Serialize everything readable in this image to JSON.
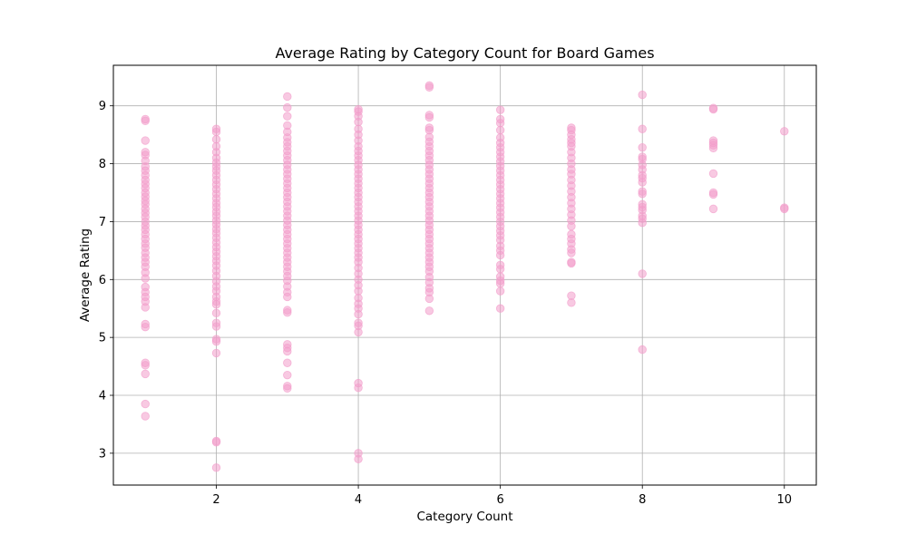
{
  "chart_data": {
    "type": "scatter",
    "title": "Average Rating by Category Count for Board Games",
    "xlabel": "Category Count",
    "ylabel": "Average Rating",
    "xlim": [
      0.55,
      10.45
    ],
    "ylim": [
      2.45,
      9.7
    ],
    "x_ticks": [
      2,
      4,
      6,
      8,
      10
    ],
    "y_ticks": [
      3,
      4,
      5,
      6,
      7,
      8,
      9
    ],
    "grid": true,
    "marker_color": "#f29ccb",
    "marker_opacity": 0.55,
    "series": [
      {
        "points": [
          [
            1,
            8.77
          ],
          [
            1,
            8.74
          ],
          [
            1,
            8.4
          ],
          [
            1,
            8.2
          ],
          [
            1,
            8.15
          ],
          [
            1,
            8.05
          ],
          [
            1,
            7.95
          ],
          [
            1,
            7.88
          ],
          [
            1,
            7.8
          ],
          [
            1,
            7.72
          ],
          [
            1,
            7.65
          ],
          [
            1,
            7.58
          ],
          [
            1,
            7.5
          ],
          [
            1,
            7.43
          ],
          [
            1,
            7.36
          ],
          [
            1,
            7.3
          ],
          [
            1,
            7.22
          ],
          [
            1,
            7.15
          ],
          [
            1,
            7.08
          ],
          [
            1,
            7.0
          ],
          [
            1,
            6.93
          ],
          [
            1,
            6.86
          ],
          [
            1,
            6.78
          ],
          [
            1,
            6.7
          ],
          [
            1,
            6.62
          ],
          [
            1,
            6.55
          ],
          [
            1,
            6.46
          ],
          [
            1,
            6.38
          ],
          [
            1,
            6.3
          ],
          [
            1,
            6.22
          ],
          [
            1,
            6.12
          ],
          [
            1,
            6.02
          ],
          [
            1,
            5.87
          ],
          [
            1,
            5.78
          ],
          [
            1,
            5.7
          ],
          [
            1,
            5.62
          ],
          [
            1,
            5.52
          ],
          [
            1,
            5.23
          ],
          [
            1,
            5.18
          ],
          [
            1,
            4.56
          ],
          [
            1,
            4.52
          ],
          [
            1,
            4.37
          ],
          [
            1,
            3.85
          ],
          [
            1,
            3.64
          ],
          [
            2,
            8.6
          ],
          [
            2,
            8.55
          ],
          [
            2,
            8.42
          ],
          [
            2,
            8.3
          ],
          [
            2,
            8.2
          ],
          [
            2,
            8.1
          ],
          [
            2,
            8.02
          ],
          [
            2,
            7.95
          ],
          [
            2,
            7.88
          ],
          [
            2,
            7.8
          ],
          [
            2,
            7.72
          ],
          [
            2,
            7.64
          ],
          [
            2,
            7.56
          ],
          [
            2,
            7.48
          ],
          [
            2,
            7.4
          ],
          [
            2,
            7.32
          ],
          [
            2,
            7.25
          ],
          [
            2,
            7.17
          ],
          [
            2,
            7.1
          ],
          [
            2,
            7.02
          ],
          [
            2,
            6.95
          ],
          [
            2,
            6.87
          ],
          [
            2,
            6.8
          ],
          [
            2,
            6.72
          ],
          [
            2,
            6.64
          ],
          [
            2,
            6.56
          ],
          [
            2,
            6.48
          ],
          [
            2,
            6.4
          ],
          [
            2,
            6.32
          ],
          [
            2,
            6.24
          ],
          [
            2,
            6.15
          ],
          [
            2,
            6.06
          ],
          [
            2,
            5.97
          ],
          [
            2,
            5.88
          ],
          [
            2,
            5.8
          ],
          [
            2,
            5.7
          ],
          [
            2,
            5.62
          ],
          [
            2,
            5.57
          ],
          [
            2,
            5.42
          ],
          [
            2,
            5.25
          ],
          [
            2,
            5.19
          ],
          [
            2,
            4.97
          ],
          [
            2,
            4.93
          ],
          [
            2,
            4.73
          ],
          [
            2,
            3.21
          ],
          [
            2,
            3.19
          ],
          [
            2,
            2.75
          ],
          [
            3,
            9.16
          ],
          [
            3,
            8.97
          ],
          [
            3,
            8.82
          ],
          [
            3,
            8.66
          ],
          [
            3,
            8.55
          ],
          [
            3,
            8.45
          ],
          [
            3,
            8.37
          ],
          [
            3,
            8.3
          ],
          [
            3,
            8.22
          ],
          [
            3,
            8.14
          ],
          [
            3,
            8.06
          ],
          [
            3,
            7.98
          ],
          [
            3,
            7.9
          ],
          [
            3,
            7.82
          ],
          [
            3,
            7.74
          ],
          [
            3,
            7.66
          ],
          [
            3,
            7.58
          ],
          [
            3,
            7.5
          ],
          [
            3,
            7.42
          ],
          [
            3,
            7.34
          ],
          [
            3,
            7.26
          ],
          [
            3,
            7.18
          ],
          [
            3,
            7.1
          ],
          [
            3,
            7.02
          ],
          [
            3,
            6.94
          ],
          [
            3,
            6.86
          ],
          [
            3,
            6.78
          ],
          [
            3,
            6.7
          ],
          [
            3,
            6.62
          ],
          [
            3,
            6.54
          ],
          [
            3,
            6.46
          ],
          [
            3,
            6.38
          ],
          [
            3,
            6.3
          ],
          [
            3,
            6.22
          ],
          [
            3,
            6.14
          ],
          [
            3,
            6.06
          ],
          [
            3,
            5.98
          ],
          [
            3,
            5.88
          ],
          [
            3,
            5.78
          ],
          [
            3,
            5.7
          ],
          [
            3,
            5.47
          ],
          [
            3,
            5.43
          ],
          [
            3,
            4.88
          ],
          [
            3,
            4.82
          ],
          [
            3,
            4.76
          ],
          [
            3,
            4.56
          ],
          [
            3,
            4.35
          ],
          [
            3,
            4.16
          ],
          [
            3,
            4.12
          ],
          [
            4,
            8.94
          ],
          [
            4,
            8.9
          ],
          [
            4,
            8.82
          ],
          [
            4,
            8.72
          ],
          [
            4,
            8.6
          ],
          [
            4,
            8.5
          ],
          [
            4,
            8.4
          ],
          [
            4,
            8.3
          ],
          [
            4,
            8.22
          ],
          [
            4,
            8.14
          ],
          [
            4,
            8.06
          ],
          [
            4,
            7.98
          ],
          [
            4,
            7.9
          ],
          [
            4,
            7.82
          ],
          [
            4,
            7.74
          ],
          [
            4,
            7.66
          ],
          [
            4,
            7.58
          ],
          [
            4,
            7.5
          ],
          [
            4,
            7.42
          ],
          [
            4,
            7.34
          ],
          [
            4,
            7.26
          ],
          [
            4,
            7.18
          ],
          [
            4,
            7.1
          ],
          [
            4,
            7.02
          ],
          [
            4,
            6.94
          ],
          [
            4,
            6.86
          ],
          [
            4,
            6.78
          ],
          [
            4,
            6.7
          ],
          [
            4,
            6.62
          ],
          [
            4,
            6.54
          ],
          [
            4,
            6.46
          ],
          [
            4,
            6.38
          ],
          [
            4,
            6.3
          ],
          [
            4,
            6.2
          ],
          [
            4,
            6.1
          ],
          [
            4,
            6.0
          ],
          [
            4,
            5.9
          ],
          [
            4,
            5.8
          ],
          [
            4,
            5.68
          ],
          [
            4,
            5.58
          ],
          [
            4,
            5.5
          ],
          [
            4,
            5.4
          ],
          [
            4,
            5.25
          ],
          [
            4,
            5.2
          ],
          [
            4,
            5.09
          ],
          [
            4,
            4.21
          ],
          [
            4,
            4.13
          ],
          [
            4,
            3.0
          ],
          [
            4,
            2.9
          ],
          [
            5,
            9.35
          ],
          [
            5,
            9.32
          ],
          [
            5,
            8.84
          ],
          [
            5,
            8.8
          ],
          [
            5,
            8.62
          ],
          [
            5,
            8.58
          ],
          [
            5,
            8.46
          ],
          [
            5,
            8.38
          ],
          [
            5,
            8.3
          ],
          [
            5,
            8.22
          ],
          [
            5,
            8.14
          ],
          [
            5,
            8.06
          ],
          [
            5,
            7.98
          ],
          [
            5,
            7.9
          ],
          [
            5,
            7.82
          ],
          [
            5,
            7.74
          ],
          [
            5,
            7.66
          ],
          [
            5,
            7.58
          ],
          [
            5,
            7.5
          ],
          [
            5,
            7.42
          ],
          [
            5,
            7.34
          ],
          [
            5,
            7.26
          ],
          [
            5,
            7.18
          ],
          [
            5,
            7.1
          ],
          [
            5,
            7.02
          ],
          [
            5,
            6.94
          ],
          [
            5,
            6.86
          ],
          [
            5,
            6.78
          ],
          [
            5,
            6.7
          ],
          [
            5,
            6.62
          ],
          [
            5,
            6.54
          ],
          [
            5,
            6.46
          ],
          [
            5,
            6.38
          ],
          [
            5,
            6.3
          ],
          [
            5,
            6.22
          ],
          [
            5,
            6.14
          ],
          [
            5,
            6.04
          ],
          [
            5,
            5.95
          ],
          [
            5,
            5.85
          ],
          [
            5,
            5.78
          ],
          [
            5,
            5.67
          ],
          [
            5,
            5.46
          ],
          [
            6,
            8.93
          ],
          [
            6,
            8.77
          ],
          [
            6,
            8.7
          ],
          [
            6,
            8.58
          ],
          [
            6,
            8.45
          ],
          [
            6,
            8.36
          ],
          [
            6,
            8.28
          ],
          [
            6,
            8.2
          ],
          [
            6,
            8.12
          ],
          [
            6,
            8.04
          ],
          [
            6,
            7.96
          ],
          [
            6,
            7.88
          ],
          [
            6,
            7.8
          ],
          [
            6,
            7.72
          ],
          [
            6,
            7.64
          ],
          [
            6,
            7.56
          ],
          [
            6,
            7.48
          ],
          [
            6,
            7.4
          ],
          [
            6,
            7.32
          ],
          [
            6,
            7.24
          ],
          [
            6,
            7.16
          ],
          [
            6,
            7.08
          ],
          [
            6,
            7.0
          ],
          [
            6,
            6.92
          ],
          [
            6,
            6.84
          ],
          [
            6,
            6.76
          ],
          [
            6,
            6.68
          ],
          [
            6,
            6.58
          ],
          [
            6,
            6.5
          ],
          [
            6,
            6.42
          ],
          [
            6,
            6.25
          ],
          [
            6,
            6.18
          ],
          [
            6,
            6.05
          ],
          [
            6,
            5.98
          ],
          [
            6,
            5.93
          ],
          [
            6,
            5.8
          ],
          [
            6,
            5.5
          ],
          [
            7,
            8.62
          ],
          [
            7,
            8.58
          ],
          [
            7,
            8.5
          ],
          [
            7,
            8.42
          ],
          [
            7,
            8.36
          ],
          [
            7,
            8.3
          ],
          [
            7,
            8.2
          ],
          [
            7,
            8.1
          ],
          [
            7,
            8.0
          ],
          [
            7,
            7.9
          ],
          [
            7,
            7.82
          ],
          [
            7,
            7.72
          ],
          [
            7,
            7.62
          ],
          [
            7,
            7.52
          ],
          [
            7,
            7.42
          ],
          [
            7,
            7.32
          ],
          [
            7,
            7.22
          ],
          [
            7,
            7.12
          ],
          [
            7,
            7.02
          ],
          [
            7,
            6.92
          ],
          [
            7,
            6.78
          ],
          [
            7,
            6.7
          ],
          [
            7,
            6.62
          ],
          [
            7,
            6.52
          ],
          [
            7,
            6.46
          ],
          [
            7,
            6.3
          ],
          [
            7,
            6.28
          ],
          [
            7,
            5.72
          ],
          [
            7,
            5.6
          ],
          [
            8,
            9.19
          ],
          [
            8,
            8.6
          ],
          [
            8,
            8.28
          ],
          [
            8,
            8.12
          ],
          [
            8,
            8.08
          ],
          [
            8,
            7.98
          ],
          [
            8,
            7.9
          ],
          [
            8,
            7.8
          ],
          [
            8,
            7.75
          ],
          [
            8,
            7.68
          ],
          [
            8,
            7.52
          ],
          [
            8,
            7.48
          ],
          [
            8,
            7.3
          ],
          [
            8,
            7.25
          ],
          [
            8,
            7.2
          ],
          [
            8,
            7.1
          ],
          [
            8,
            7.05
          ],
          [
            8,
            6.98
          ],
          [
            8,
            6.1
          ],
          [
            8,
            4.79
          ],
          [
            9,
            8.96
          ],
          [
            9,
            8.94
          ],
          [
            9,
            8.4
          ],
          [
            9,
            8.36
          ],
          [
            9,
            8.32
          ],
          [
            9,
            8.27
          ],
          [
            9,
            7.83
          ],
          [
            9,
            7.5
          ],
          [
            9,
            7.47
          ],
          [
            9,
            7.22
          ],
          [
            10,
            8.56
          ],
          [
            10,
            7.24
          ],
          [
            10,
            7.22
          ]
        ]
      }
    ]
  }
}
